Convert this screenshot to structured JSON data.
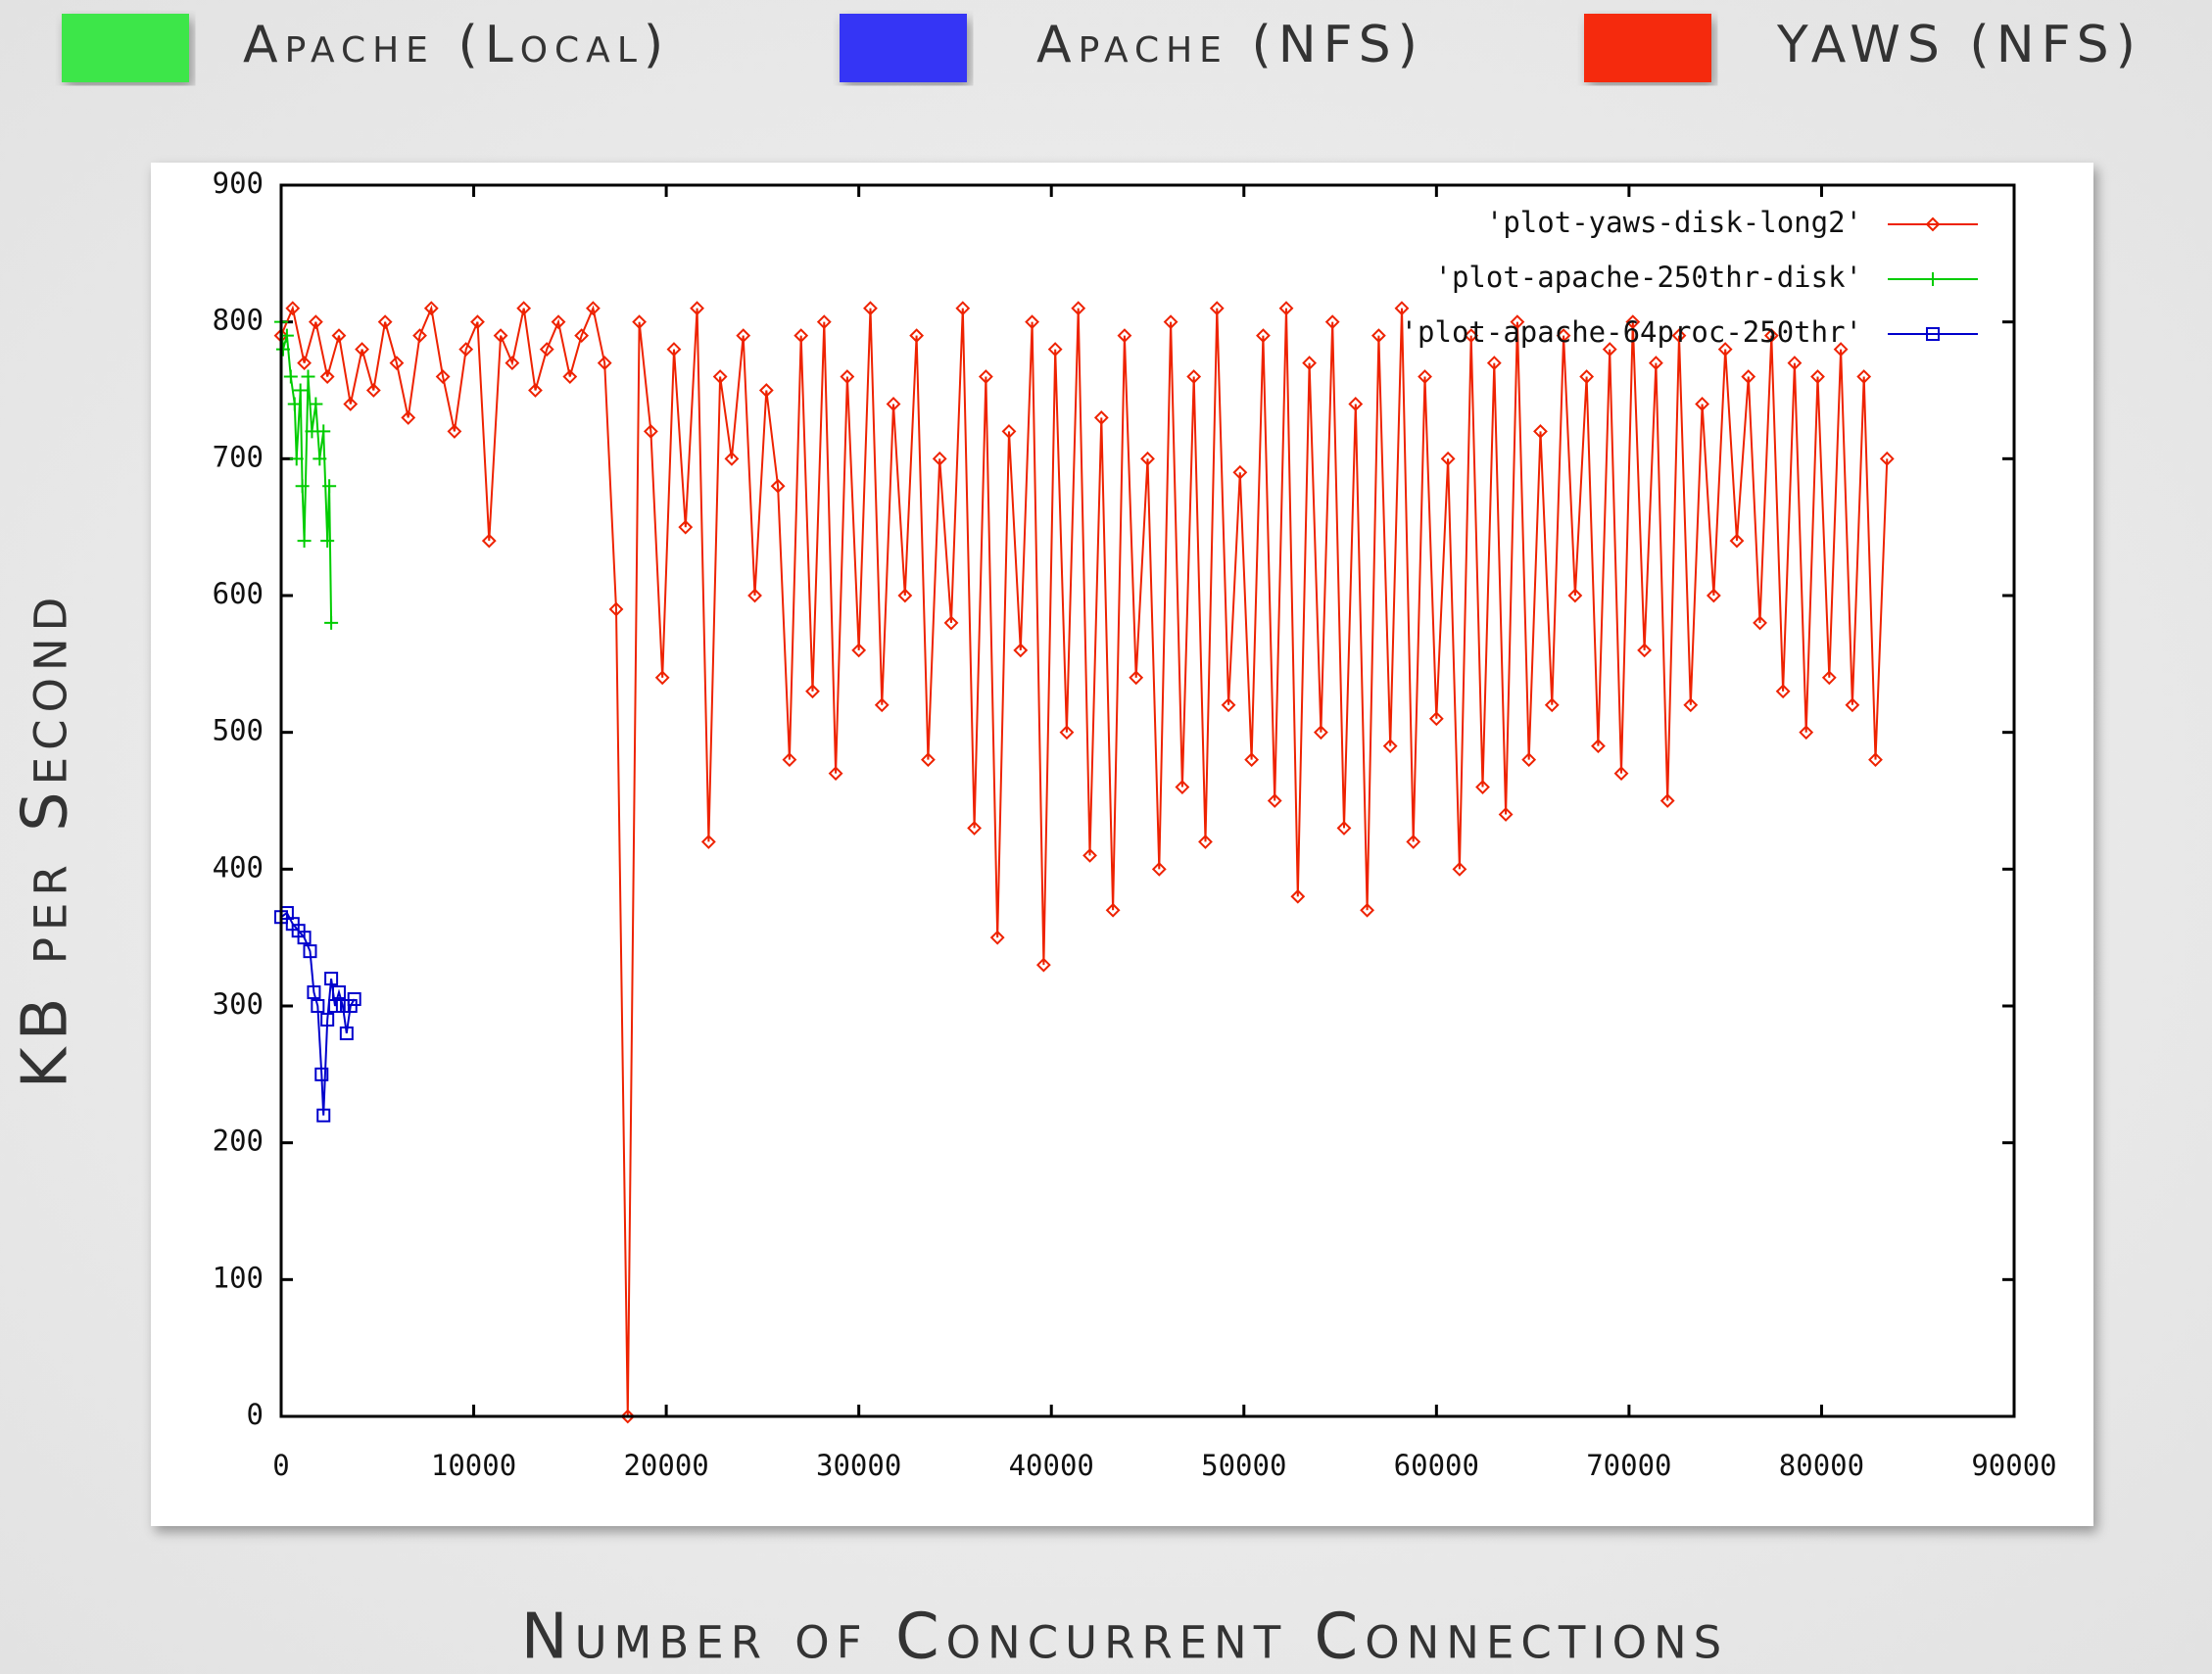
{
  "chart_data": {
    "type": "line",
    "slide_legend": [
      {
        "label": "Apache (Local)",
        "color": "#3de64a"
      },
      {
        "label": "Apache (NFS)",
        "color": "#3434f5"
      },
      {
        "label": "YAWS (NFS)",
        "color": "#f52a10"
      }
    ],
    "x_label": "Number of Concurrent Connections",
    "y_label": "KB per Second",
    "xlim": [
      0,
      90000
    ],
    "ylim": [
      0,
      900
    ],
    "xticks": [
      0,
      10000,
      20000,
      30000,
      40000,
      50000,
      60000,
      70000,
      80000,
      90000
    ],
    "yticks": [
      0,
      100,
      200,
      300,
      400,
      500,
      600,
      700,
      800,
      900
    ],
    "legend": "upper right",
    "series": [
      {
        "name": "'plot-yaws-disk-long2'",
        "color": "#ee2200",
        "marker": "diamond",
        "x": [
          0,
          600,
          1200,
          1800,
          2400,
          3000,
          3600,
          4200,
          4800,
          5400,
          6000,
          6600,
          7200,
          7800,
          8400,
          9000,
          9600,
          10200,
          10800,
          11400,
          12000,
          12600,
          13200,
          13800,
          14400,
          15000,
          15600,
          16200,
          16800,
          17400,
          18000,
          18600,
          19200,
          19800,
          20400,
          21000,
          21600,
          22200,
          22800,
          23400,
          24000,
          24600,
          25200,
          25800,
          26400,
          27000,
          27600,
          28200,
          28800,
          29400,
          30000,
          30600,
          31200,
          31800,
          32400,
          33000,
          33600,
          34200,
          34800,
          35400,
          36000,
          36600,
          37200,
          37800,
          38400,
          39000,
          39600,
          40200,
          40800,
          41400,
          42000,
          42600,
          43200,
          43800,
          44400,
          45000,
          45600,
          46200,
          46800,
          47400,
          48000,
          48600,
          49200,
          49800,
          50400,
          51000,
          51600,
          52200,
          52800,
          53400,
          54000,
          54600,
          55200,
          55800,
          56400,
          57000,
          57600,
          58200,
          58800,
          59400,
          60000,
          60600,
          61200,
          61800,
          62400,
          63000,
          63600,
          64200,
          64800,
          65400,
          66000,
          66600,
          67200,
          67800,
          68400,
          69000,
          69600,
          70200,
          70800,
          71400,
          72000,
          72600,
          73200,
          73800,
          74400,
          75000,
          75600,
          76200,
          76800,
          77400,
          78000,
          78600,
          79200,
          79800,
          80400,
          81000,
          81600,
          82200,
          82800,
          83400
        ],
        "values": [
          790,
          810,
          770,
          800,
          760,
          790,
          740,
          780,
          750,
          800,
          770,
          730,
          790,
          810,
          760,
          720,
          780,
          800,
          640,
          790,
          770,
          810,
          750,
          780,
          800,
          760,
          790,
          810,
          770,
          590,
          0,
          800,
          720,
          540,
          780,
          650,
          810,
          420,
          760,
          700,
          790,
          600,
          750,
          680,
          480,
          790,
          530,
          800,
          470,
          760,
          560,
          810,
          520,
          740,
          600,
          790,
          480,
          700,
          580,
          810,
          430,
          760,
          350,
          720,
          560,
          800,
          330,
          780,
          500,
          810,
          410,
          730,
          370,
          790,
          540,
          700,
          400,
          800,
          460,
          760,
          420,
          810,
          520,
          690,
          480,
          790,
          450,
          810,
          380,
          770,
          500,
          800,
          430,
          740,
          370,
          790,
          490,
          810,
          420,
          760,
          510,
          700,
          400,
          790,
          460,
          770,
          440,
          800,
          480,
          720,
          520,
          790,
          600,
          760,
          490,
          780,
          470,
          800,
          560,
          770,
          450,
          790,
          520,
          740,
          600,
          780,
          640,
          760,
          580,
          790,
          530,
          770,
          500,
          760,
          540,
          780,
          520,
          760,
          480,
          700
        ]
      },
      {
        "name": "'plot-apache-250thr-disk'",
        "color": "#00cc00",
        "marker": "plus",
        "x": [
          0,
          100,
          300,
          500,
          700,
          800,
          1000,
          1100,
          1200,
          1400,
          1600,
          1800,
          2000,
          2200,
          2400,
          2500,
          2600
        ],
        "values": [
          800,
          780,
          790,
          760,
          740,
          700,
          750,
          680,
          640,
          760,
          720,
          740,
          700,
          720,
          640,
          680,
          580
        ]
      },
      {
        "name": "'plot-apache-64proc-250thr'",
        "color": "#0000cc",
        "marker": "square",
        "x": [
          0,
          300,
          600,
          900,
          1200,
          1500,
          1700,
          1900,
          2100,
          2200,
          2400,
          2600,
          2800,
          3000,
          3200,
          3400,
          3600,
          3800
        ],
        "values": [
          365,
          368,
          360,
          355,
          350,
          340,
          310,
          300,
          250,
          220,
          290,
          320,
          300,
          310,
          300,
          280,
          300,
          305
        ]
      }
    ]
  }
}
